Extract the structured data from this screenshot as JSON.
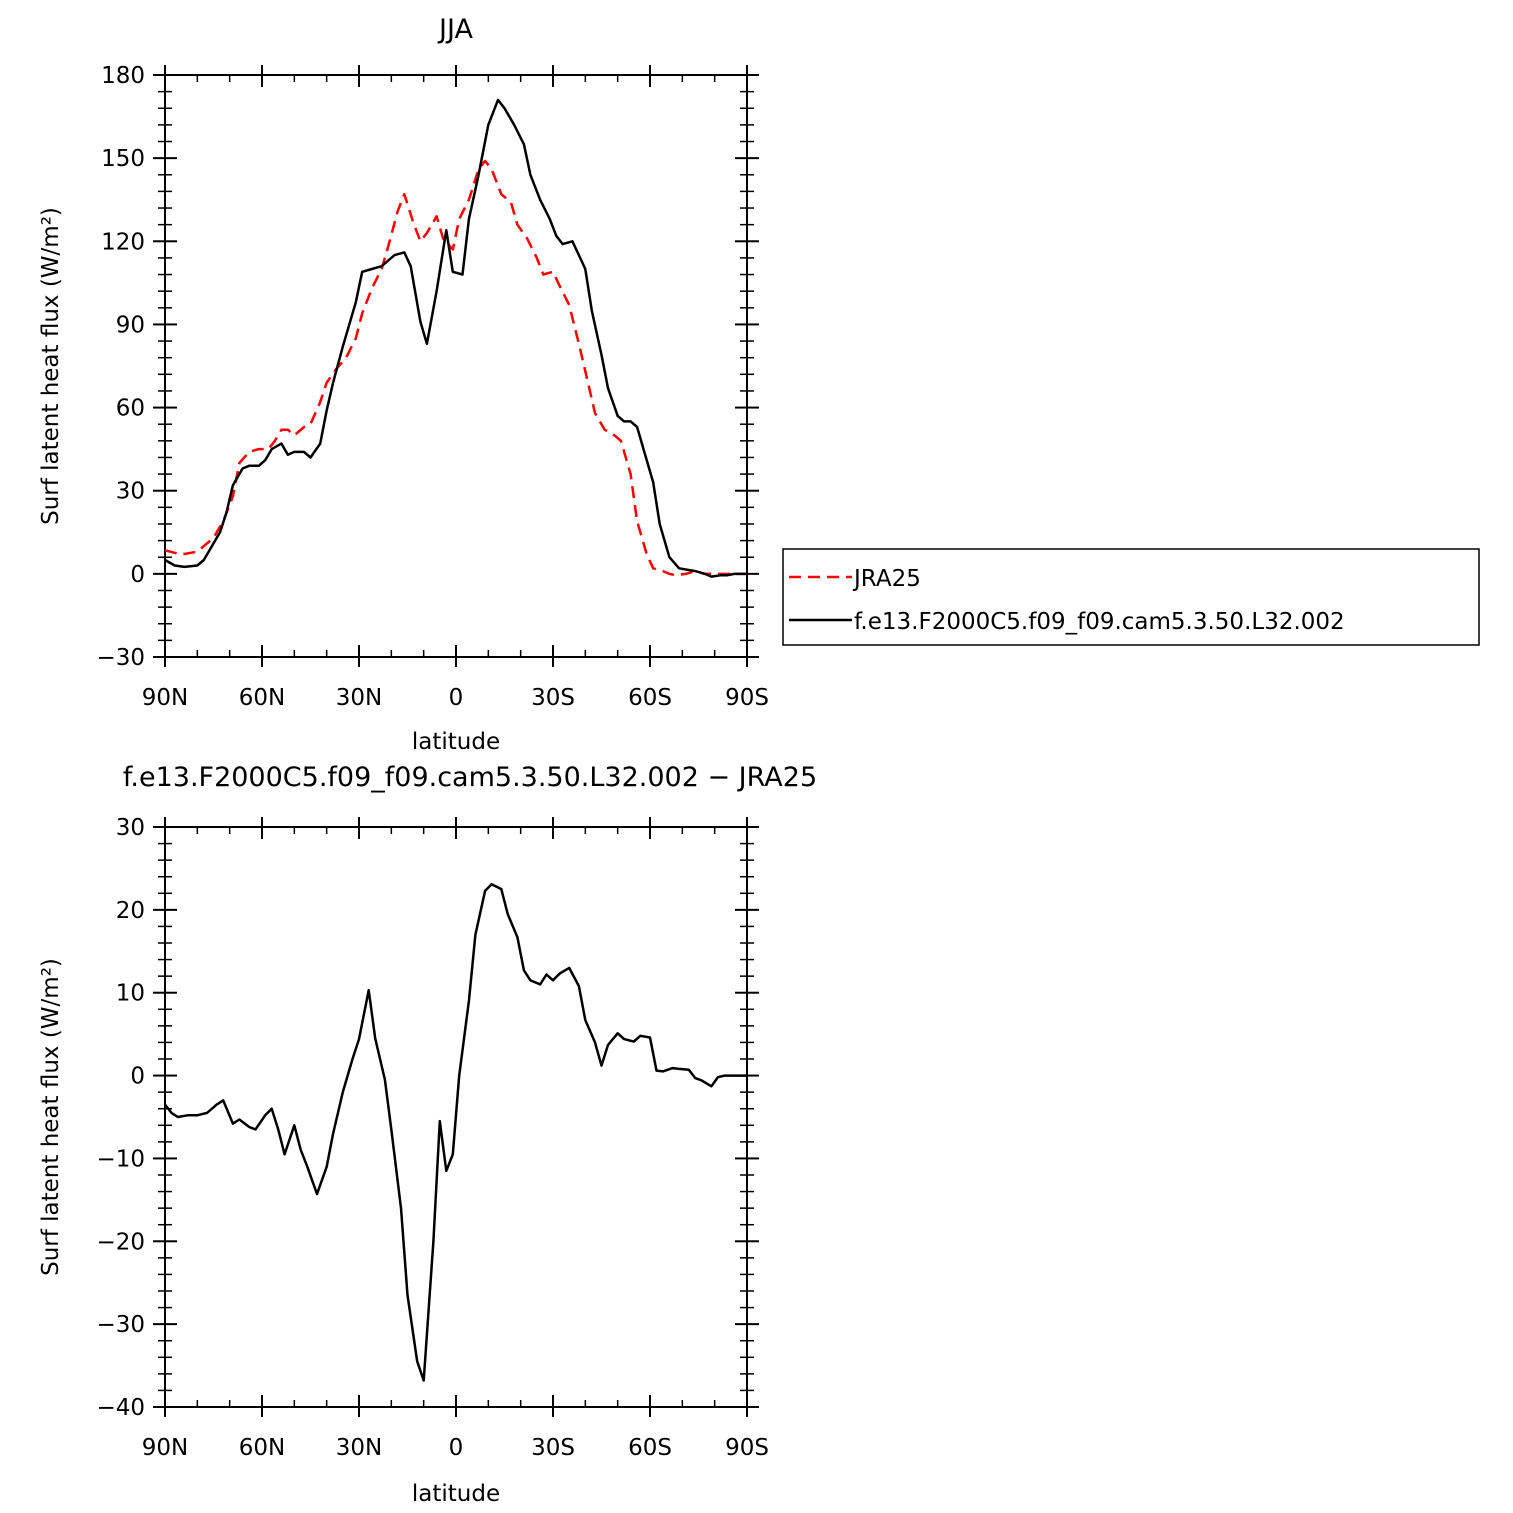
{
  "chart_data": [
    {
      "type": "line",
      "title": "JJA",
      "xlabel": "latitude",
      "ylabel": "Surf latent heat flux (W/m²)",
      "xlim": [
        90,
        -90
      ],
      "ylim": [
        -30,
        180
      ],
      "xticks": [
        90,
        60,
        30,
        0,
        -30,
        -60,
        -90
      ],
      "xtick_labels": [
        "90N",
        "60N",
        "30N",
        "0",
        "30S",
        "60S",
        "90S"
      ],
      "yticks": [
        -30,
        0,
        30,
        60,
        90,
        120,
        150,
        180
      ],
      "ytick_labels": [
        "−30",
        "0",
        "30",
        "60",
        "90",
        "120",
        "150",
        "180"
      ],
      "grid": false,
      "legend_position": "right",
      "series": [
        {
          "name": "JRA25",
          "color": "#ff0000",
          "dash": "dashed",
          "x": [
            90,
            85,
            80,
            75,
            72,
            69,
            67,
            64,
            61,
            58,
            56,
            54,
            52,
            50,
            47,
            45,
            42,
            40,
            37,
            34,
            31,
            29,
            26,
            23,
            21,
            18,
            16,
            13,
            11,
            9,
            6,
            4,
            1,
            -1,
            -4,
            -7,
            -9,
            -11,
            -14,
            -17,
            -19,
            -22,
            -25,
            -27,
            -30,
            -32,
            -35,
            -38,
            -41,
            -43,
            -46,
            -49,
            -51,
            -54,
            -56,
            -59,
            -61,
            -64,
            -66,
            -68,
            -71,
            -74,
            -77,
            -79,
            -82,
            -84,
            -86,
            -88,
            -90
          ],
          "values": [
            8.5,
            7,
            8,
            13,
            19,
            28,
            40,
            44,
            45,
            45,
            48,
            52,
            52,
            50,
            53,
            54,
            62,
            69,
            74,
            78,
            85,
            94,
            103,
            110,
            118,
            131,
            137,
            126,
            120,
            123,
            129,
            121,
            117,
            128,
            135,
            146,
            149,
            146,
            137,
            134,
            126,
            121,
            114,
            108,
            109,
            104,
            97,
            83,
            68,
            58,
            52,
            50,
            48,
            36,
            19,
            7,
            2,
            1,
            0,
            -0.5,
            0,
            1,
            0,
            0,
            0,
            0,
            0,
            0,
            0
          ]
        },
        {
          "name": "f.e13.F2000C5.f09_f09.cam5.3.50.L32.002",
          "color": "#000000",
          "dash": "solid",
          "x": [
            90,
            87,
            84,
            80,
            78,
            76,
            73,
            71,
            69,
            66,
            64,
            61,
            59,
            57,
            54,
            52,
            50,
            47,
            45,
            42,
            40,
            38,
            35,
            31,
            29,
            26,
            23,
            19,
            16,
            14,
            11,
            9,
            6,
            3,
            1,
            -2,
            -4,
            -7,
            -10,
            -13,
            -15,
            -18,
            -21,
            -23,
            -26,
            -29,
            -31,
            -33,
            -36,
            -38,
            -40,
            -42,
            -45,
            -47,
            -50,
            -52,
            -54,
            -56,
            -58,
            -61,
            -63,
            -66,
            -69,
            -74,
            -77,
            -79,
            -82,
            -84,
            -86,
            -88,
            -90
          ],
          "values": [
            5,
            3,
            2.5,
            3,
            5,
            9,
            15,
            22,
            32,
            38,
            39,
            39,
            41,
            45,
            47,
            43,
            44,
            44,
            42,
            47,
            59,
            69,
            82,
            98,
            109,
            110,
            111,
            115,
            116,
            111,
            91,
            83,
            102,
            124,
            109,
            108,
            128,
            144,
            162,
            171,
            168,
            162,
            155,
            144,
            135,
            128,
            122,
            119,
            120,
            115,
            110,
            95,
            79,
            67,
            57,
            55,
            55,
            53,
            45,
            33,
            18,
            6,
            2,
            1,
            0,
            -1,
            -0.5,
            -0.5,
            0,
            0,
            0
          ]
        }
      ]
    },
    {
      "type": "line",
      "title": "f.e13.F2000C5.f09_f09.cam5.3.50.L32.002 − JRA25",
      "xlabel": "latitude",
      "ylabel": "Surf latent heat flux (W/m²)",
      "xlim": [
        90,
        -90
      ],
      "ylim": [
        -40,
        30
      ],
      "xticks": [
        90,
        60,
        30,
        0,
        -30,
        -60,
        -90
      ],
      "xtick_labels": [
        "90N",
        "60N",
        "30N",
        "0",
        "30S",
        "60S",
        "90S"
      ],
      "yticks": [
        -40,
        -30,
        -20,
        -10,
        0,
        10,
        20,
        30
      ],
      "ytick_labels": [
        "−40",
        "−30",
        "−20",
        "−10",
        "0",
        "10",
        "20",
        "30"
      ],
      "grid": false,
      "series": [
        {
          "color": "#000000",
          "dash": "solid",
          "x": [
            90,
            88,
            86,
            83,
            80,
            77,
            74,
            72,
            69,
            67,
            64,
            62,
            59,
            57,
            55,
            53,
            50,
            48,
            46,
            43,
            40,
            38,
            35,
            32,
            30,
            27,
            25,
            22,
            20,
            17,
            15,
            12,
            10,
            7,
            5,
            3,
            1,
            -1,
            -4,
            -6,
            -9,
            -11,
            -14,
            -16,
            -19,
            -21,
            -23,
            -26,
            -28,
            -30,
            -32,
            -35,
            -38,
            -40,
            -43,
            -45,
            -47,
            -50,
            -52,
            -55,
            -57,
            -60,
            -62,
            -64,
            -67,
            -69,
            -72,
            -74,
            -76,
            -79,
            -81,
            -83,
            -86,
            -88,
            -90
          ],
          "values": [
            -3.5,
            -4.5,
            -5,
            -4.8,
            -4.8,
            -4.5,
            -3.5,
            -3,
            -5.8,
            -5.3,
            -6.2,
            -6.5,
            -4.8,
            -4,
            -6.5,
            -9.5,
            -6,
            -9,
            -11,
            -14.3,
            -11,
            -7,
            -2,
            2,
            4.4,
            10.3,
            4.5,
            -0.5,
            -6.5,
            -16,
            -26.5,
            -34.5,
            -36.8,
            -20,
            -5.5,
            -11.5,
            -9.5,
            0,
            9,
            17,
            22.3,
            23.1,
            22.5,
            19.5,
            16.7,
            12.7,
            11.5,
            11,
            12.2,
            11.5,
            12.3,
            13,
            10.8,
            6.7,
            4,
            1.2,
            3.7,
            5.1,
            4.4,
            4.1,
            4.8,
            4.6,
            0.6,
            0.5,
            0.9,
            0.8,
            0.7,
            -0.3,
            -0.6,
            -1.3,
            -0.2,
            0,
            0,
            0,
            0
          ]
        }
      ]
    }
  ]
}
